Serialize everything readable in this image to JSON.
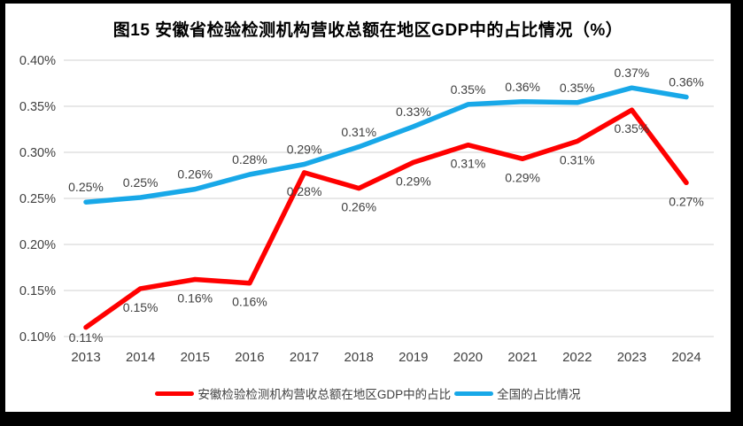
{
  "chart_data": {
    "type": "line",
    "title": "图15 安徽省检验检测机构营收总额在地区GDP中的占比情况（%）",
    "categories": [
      "2013",
      "2014",
      "2015",
      "2016",
      "2017",
      "2018",
      "2019",
      "2020",
      "2021",
      "2022",
      "2023",
      "2024"
    ],
    "y_ticks": [
      "0.40%",
      "0.35%",
      "0.30%",
      "0.25%",
      "0.20%",
      "0.15%",
      "0.10%"
    ],
    "ylim": [
      0.1,
      0.4
    ],
    "y_unit": "%",
    "grid": true,
    "legend_position": "bottom",
    "series": [
      {
        "name": "安徽检验检测机构营收总额在地区GDP中的占比",
        "color": "#FF0000",
        "label_side": "below",
        "values": [
          0.11,
          0.15,
          0.16,
          0.16,
          0.28,
          0.26,
          0.29,
          0.31,
          0.29,
          0.31,
          0.35,
          0.27
        ],
        "labels": [
          "0.11%",
          "0.15%",
          "0.16%",
          "0.16%",
          "0.28%",
          "0.26%",
          "0.29%",
          "0.31%",
          "0.29%",
          "0.31%",
          "0.35%",
          "0.27%"
        ],
        "plot_values": [
          0.11,
          0.152,
          0.162,
          0.158,
          0.278,
          0.261,
          0.289,
          0.308,
          0.293,
          0.312,
          0.346,
          0.267
        ]
      },
      {
        "name": "全国的占比情况",
        "color": "#18A8E8",
        "label_side": "above",
        "values": [
          0.25,
          0.25,
          0.26,
          0.28,
          0.29,
          0.31,
          0.33,
          0.35,
          0.36,
          0.35,
          0.37,
          0.36
        ],
        "labels": [
          "0.25%",
          "0.25%",
          "0.26%",
          "0.28%",
          "0.29%",
          "0.31%",
          "0.33%",
          "0.35%",
          "0.36%",
          "0.35%",
          "0.37%",
          "0.36%"
        ],
        "plot_values": [
          0.246,
          0.251,
          0.26,
          0.276,
          0.287,
          0.306,
          0.328,
          0.352,
          0.355,
          0.354,
          0.37,
          0.36
        ]
      }
    ]
  },
  "colors": {
    "anhui_series": "#FF0000",
    "national_series": "#18A8E8",
    "gridline": "#D9D9D9",
    "tick_text": "#404040",
    "data_label_text": "#404040",
    "title_text": "#000000",
    "frame": "#000000",
    "background": "#FFFFFF"
  }
}
